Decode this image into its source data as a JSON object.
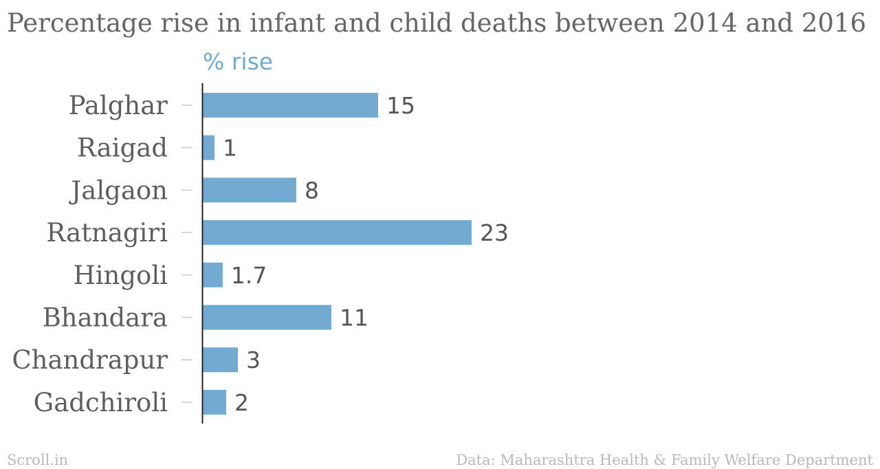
{
  "chart_data": {
    "type": "bar",
    "orientation": "horizontal",
    "title": "Percentage rise in infant and child deaths between 2014 and 2016",
    "series_label": "% rise",
    "categories": [
      "Palghar",
      "Raigad",
      "Jalgaon",
      "Ratnagiri",
      "Hingoli",
      "Bhandara",
      "Chandrapur",
      "Gadchiroli"
    ],
    "values": [
      15,
      1,
      8,
      23,
      1.7,
      11,
      3,
      2
    ],
    "value_labels": [
      "15",
      "1",
      "8",
      "23",
      "1.7",
      "11",
      "3",
      "2"
    ],
    "xlim": [
      0,
      23
    ],
    "bar_color": "#73aad2",
    "grid": false
  },
  "footer": {
    "left": "Scroll.in",
    "right": "Data: Maharashtra Health & Family Welfare Department"
  }
}
